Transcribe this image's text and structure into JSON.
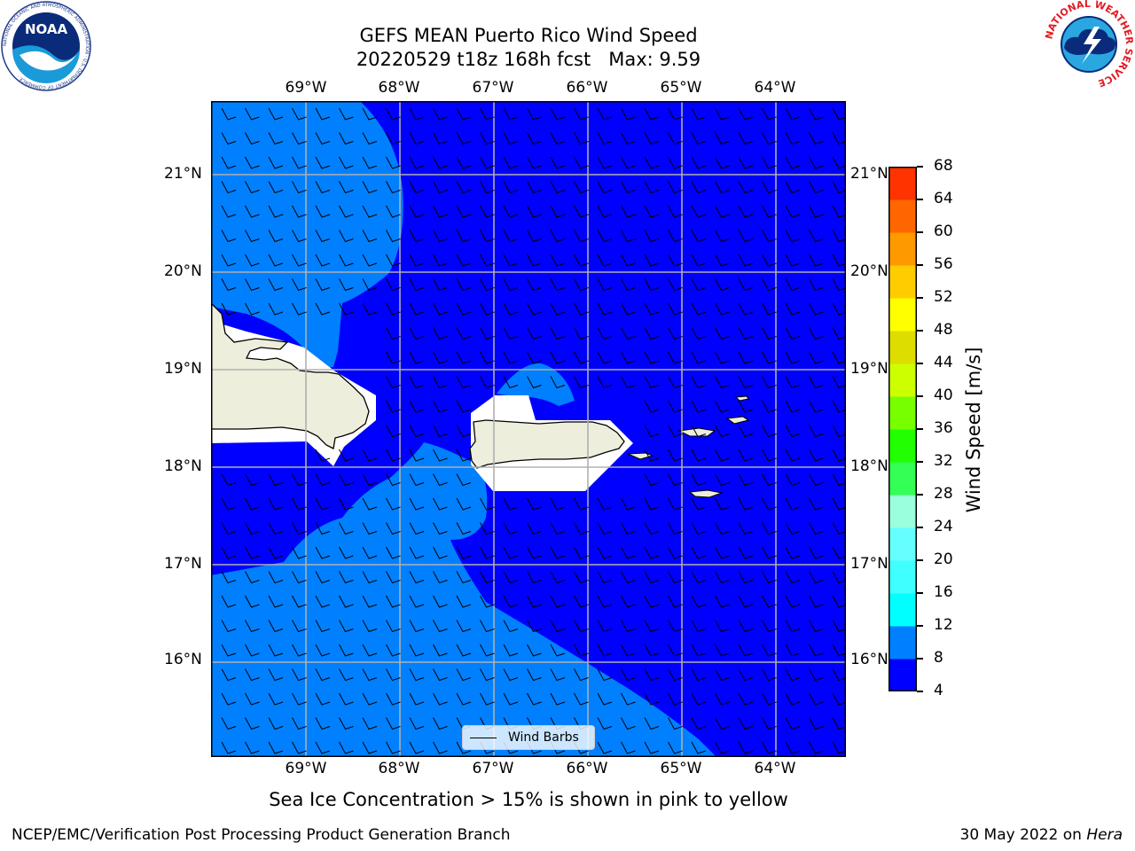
{
  "title_line1": "GEFS MEAN Puerto Rico Wind Speed",
  "title_line2": "20220529 t18z 168h fcst   Max: 9.59",
  "map": {
    "lon_labels": [
      "69°W",
      "68°W",
      "67°W",
      "66°W",
      "65°W",
      "64°W"
    ],
    "lat_labels": [
      "21°N",
      "20°N",
      "19°N",
      "18°N",
      "17°N",
      "16°N"
    ],
    "lon_values": [
      -69,
      -68,
      -67,
      -66,
      -65,
      -64
    ],
    "lat_values": [
      21,
      20,
      19,
      18,
      17,
      16
    ],
    "wind_field_colors": [
      "#0000ff",
      "#0080ff"
    ],
    "land_color": "#eeeedc",
    "masked_color": "#ffffff"
  },
  "colorbar": {
    "title": "Wind Speed [m/s]",
    "ticks": [
      "4",
      "8",
      "12",
      "16",
      "20",
      "24",
      "28",
      "32",
      "36",
      "40",
      "44",
      "48",
      "52",
      "56",
      "60",
      "64",
      "68"
    ],
    "colors": [
      "#0000ff",
      "#0080ff",
      "#00ffff",
      "#40ffff",
      "#66ffff",
      "#99ffdd",
      "#33ff55",
      "#22ff00",
      "#77ff00",
      "#ccff00",
      "#dddd00",
      "#ffff00",
      "#ffcc00",
      "#ff9900",
      "#ff6600",
      "#ff3300",
      "#ff0000"
    ]
  },
  "legend": {
    "label": "Wind Barbs"
  },
  "caption": "Sea Ice Concentration > 15% is shown in pink to yellow",
  "footer": {
    "left": "NCEP/EMC/Verification Post Processing Product Generation Branch",
    "right_date": "30 May 2022 on",
    "right_host": "Hera"
  },
  "logos": {
    "noaa": "NOAA",
    "noaa_ring": "NATIONAL OCEANIC AND ATMOSPHERIC ADMINISTRATION · U.S. DEPARTMENT OF COMMERCE ·",
    "nws_ring": "NATIONAL WEATHER SERVICE"
  }
}
